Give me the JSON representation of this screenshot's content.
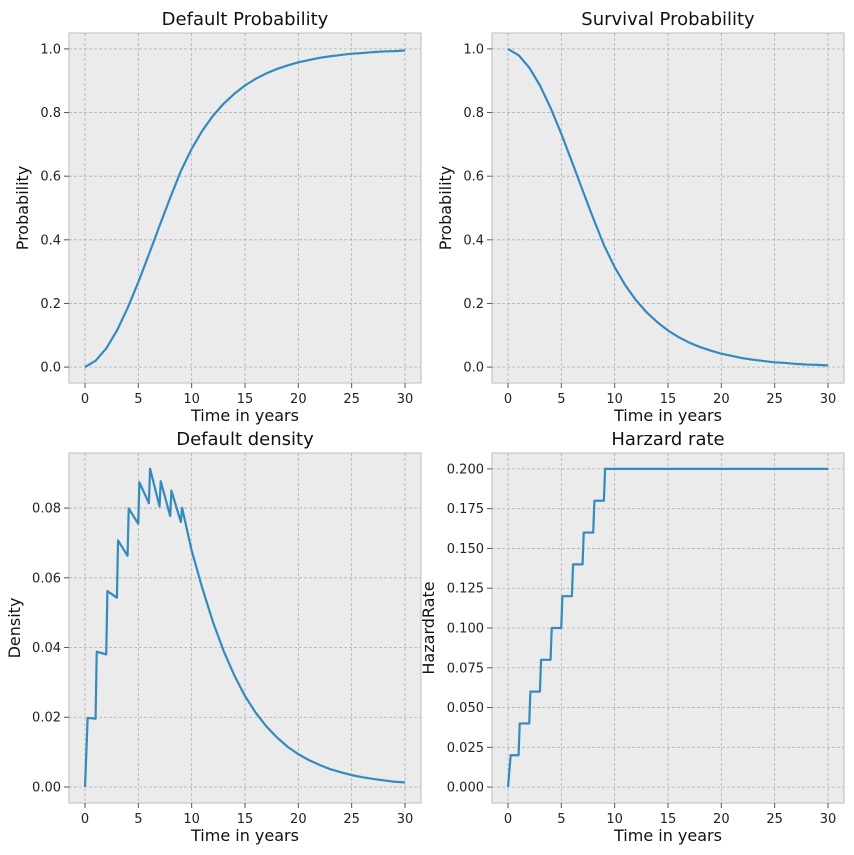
{
  "colors": {
    "line": "#348abd",
    "panel": "#ebebeb",
    "grid": "#b0b0b0"
  },
  "chart_data": [
    {
      "type": "line",
      "title": "Default Probability",
      "xlabel": "Time in years",
      "ylabel": "Probability",
      "xlim": [
        -1.5,
        31.5
      ],
      "ylim": [
        -0.05,
        1.05
      ],
      "xticks": [
        0,
        5,
        10,
        15,
        20,
        25,
        30
      ],
      "xtick_labels": [
        "0",
        "5",
        "10",
        "15",
        "20",
        "25",
        "30"
      ],
      "yticks": [
        0.0,
        0.2,
        0.4,
        0.6,
        0.8,
        1.0
      ],
      "ytick_labels": [
        "0.0",
        "0.2",
        "0.4",
        "0.6",
        "0.8",
        "1.0"
      ],
      "grid": true,
      "series": [
        {
          "x": [
            0,
            1,
            2,
            3,
            4,
            5,
            6,
            7,
            8,
            9,
            10,
            11,
            12,
            13,
            14,
            15,
            16,
            17,
            18,
            19,
            20,
            21,
            22,
            23,
            24,
            25,
            26,
            27,
            28,
            29,
            30
          ],
          "y": [
            0.0,
            0.02,
            0.059,
            0.115,
            0.186,
            0.267,
            0.355,
            0.445,
            0.533,
            0.617,
            0.686,
            0.743,
            0.79,
            0.828,
            0.859,
            0.885,
            0.906,
            0.923,
            0.937,
            0.948,
            0.958,
            0.965,
            0.972,
            0.977,
            0.981,
            0.985,
            0.987,
            0.99,
            0.992,
            0.993,
            0.995
          ]
        }
      ]
    },
    {
      "type": "line",
      "title": "Survival Probability",
      "xlabel": "Time in years",
      "ylabel": "Probability",
      "xlim": [
        -1.5,
        31.5
      ],
      "ylim": [
        -0.05,
        1.05
      ],
      "xticks": [
        0,
        5,
        10,
        15,
        20,
        25,
        30
      ],
      "xtick_labels": [
        "0",
        "5",
        "10",
        "15",
        "20",
        "25",
        "30"
      ],
      "yticks": [
        0.0,
        0.2,
        0.4,
        0.6,
        0.8,
        1.0
      ],
      "ytick_labels": [
        "0.0",
        "0.2",
        "0.4",
        "0.6",
        "0.8",
        "1.0"
      ],
      "grid": true,
      "series": [
        {
          "x": [
            0,
            1,
            2,
            3,
            4,
            5,
            6,
            7,
            8,
            9,
            10,
            11,
            12,
            13,
            14,
            15,
            16,
            17,
            18,
            19,
            20,
            21,
            22,
            23,
            24,
            25,
            26,
            27,
            28,
            29,
            30
          ],
          "y": [
            1.0,
            0.98,
            0.941,
            0.885,
            0.814,
            0.733,
            0.645,
            0.555,
            0.467,
            0.383,
            0.314,
            0.257,
            0.21,
            0.172,
            0.141,
            0.115,
            0.094,
            0.077,
            0.063,
            0.052,
            0.042,
            0.035,
            0.028,
            0.023,
            0.019,
            0.015,
            0.013,
            0.01,
            0.008,
            0.007,
            0.005
          ]
        }
      ]
    },
    {
      "type": "line",
      "title": "Default density",
      "xlabel": "Time in years",
      "ylabel": "Density",
      "xlim": [
        -1.5,
        31.5
      ],
      "ylim": [
        -0.0046,
        0.0958
      ],
      "xticks": [
        0,
        5,
        10,
        15,
        20,
        25,
        30
      ],
      "xtick_labels": [
        "0",
        "5",
        "10",
        "15",
        "20",
        "25",
        "30"
      ],
      "yticks": [
        0.0,
        0.02,
        0.04,
        0.06,
        0.08
      ],
      "ytick_labels": [
        "0.00",
        "0.02",
        "0.04",
        "0.06",
        "0.08"
      ],
      "grid": true,
      "series": [
        {
          "x": [
            0,
            0.25,
            0.99,
            1.1,
            1.99,
            2.1,
            2.99,
            3.1,
            3.99,
            4.1,
            4.99,
            5.1,
            5.99,
            6.1,
            6.99,
            7.1,
            7.99,
            8.1,
            8.99,
            9.1,
            10,
            11,
            12,
            13,
            14,
            15,
            16,
            17,
            18,
            19,
            20,
            21,
            22,
            23,
            24,
            25,
            26,
            27,
            28,
            29,
            30
          ],
          "y": [
            0.0,
            0.0198,
            0.0196,
            0.0388,
            0.038,
            0.0562,
            0.0543,
            0.0707,
            0.0663,
            0.0799,
            0.0755,
            0.0874,
            0.0814,
            0.0913,
            0.0805,
            0.0877,
            0.0777,
            0.085,
            0.076,
            0.0801,
            0.0678,
            0.057,
            0.0473,
            0.039,
            0.032,
            0.0261,
            0.0213,
            0.0174,
            0.0142,
            0.0115,
            0.0094,
            0.0077,
            0.0063,
            0.0051,
            0.0042,
            0.0034,
            0.0028,
            0.0023,
            0.0019,
            0.0015,
            0.0013
          ]
        }
      ]
    },
    {
      "type": "line",
      "title": "Harzard rate",
      "xlabel": "Time in years",
      "ylabel": "HazardRate",
      "xlim": [
        -1.5,
        31.5
      ],
      "ylim": [
        -0.01,
        0.21
      ],
      "xticks": [
        0,
        5,
        10,
        15,
        20,
        25,
        30
      ],
      "xtick_labels": [
        "0",
        "5",
        "10",
        "15",
        "20",
        "25",
        "30"
      ],
      "yticks": [
        0.0,
        0.025,
        0.05,
        0.075,
        0.1,
        0.125,
        0.15,
        0.175,
        0.2
      ],
      "ytick_labels": [
        "0.000",
        "0.025",
        "0.050",
        "0.075",
        "0.100",
        "0.125",
        "0.150",
        "0.175",
        "0.200"
      ],
      "grid": true,
      "series": [
        {
          "x": [
            0,
            0.25,
            0.99,
            1.1,
            1.99,
            2.1,
            2.99,
            3.1,
            3.99,
            4.1,
            4.99,
            5.1,
            5.99,
            6.1,
            6.99,
            7.1,
            7.99,
            8.1,
            8.99,
            9.1,
            30
          ],
          "y": [
            0.0,
            0.02,
            0.02,
            0.04,
            0.04,
            0.06,
            0.06,
            0.08,
            0.08,
            0.1,
            0.1,
            0.12,
            0.12,
            0.14,
            0.14,
            0.16,
            0.16,
            0.18,
            0.18,
            0.2,
            0.2
          ]
        }
      ]
    }
  ]
}
